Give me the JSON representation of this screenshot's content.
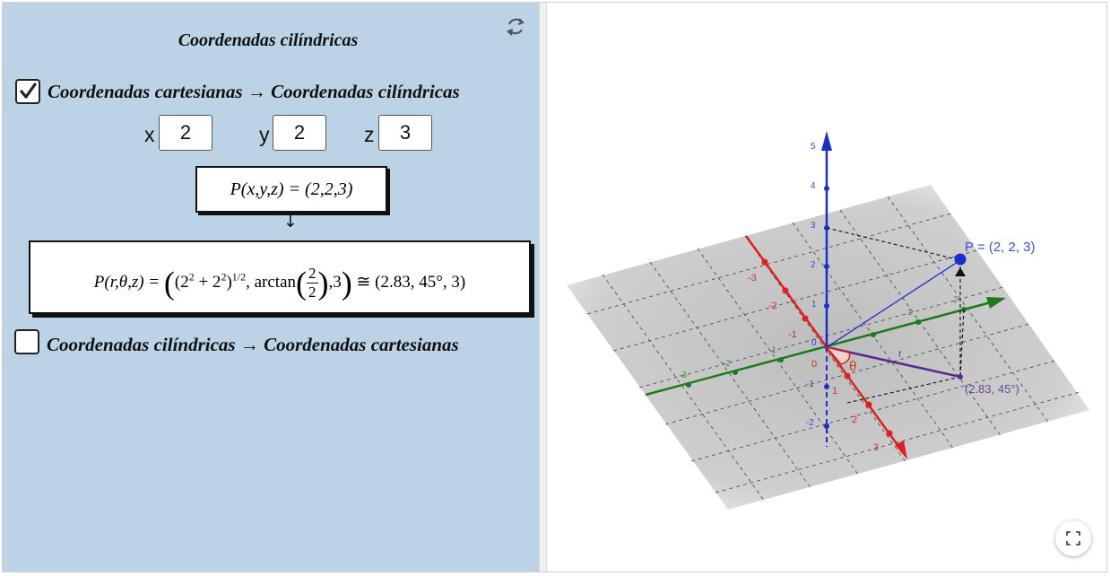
{
  "app": {
    "title": "Coordenadas cilíndricas"
  },
  "controls": {
    "checkbox1": {
      "label": "Coordenadas cartesianas → Coordenadas cilíndricas",
      "checked": true
    },
    "checkbox2": {
      "label": "Coordenadas cilíndricas → Coordenadas cartesianas",
      "checked": false
    },
    "inputs": [
      {
        "label": "x",
        "value": "2"
      },
      {
        "label": "y",
        "value": "2"
      },
      {
        "label": "z",
        "value": "3"
      }
    ]
  },
  "formulas": {
    "cartesian": "P(x,y,z) = (2,2,3)",
    "arrow": "↓",
    "cyl_lhs": "P(r,θ,z) =",
    "cyl_base": "(2",
    "cyl_exp1": "2",
    "cyl_plus": " + 2",
    "cyl_exp2": "2",
    "cyl_close": ")",
    "cyl_half": "1/2",
    "cyl_arctan": ", arctan",
    "cyl_num": "2",
    "cyl_den": "2",
    "cyl_z": ",3",
    "cyl_result": "≅ (2.83, 45°, 3)"
  },
  "graph3d": {
    "point_label": "P = (2, 2, 3)",
    "projection_label": "(2.83, 45°)",
    "r_label": "r",
    "theta_label": "θ",
    "origin_label": "0",
    "z_ticks": [
      "5",
      "4",
      "3",
      "2",
      "1",
      "0",
      "-1",
      "-2"
    ],
    "x_ticks": [
      "-3",
      "-2",
      "-1",
      "0",
      "1",
      "2",
      "3"
    ],
    "y_ticks": [
      "-3",
      "-2",
      "-1",
      "1",
      "2",
      "3"
    ],
    "colors": {
      "x_axis": "#e02020",
      "y_axis": "#1e7a1e",
      "z_axis": "#1a2fcf",
      "point": "#1a2fcf",
      "r_segment": "#5b2a8e",
      "grid_plane": "#bdbdbd"
    }
  },
  "icons": {
    "reset": "refresh-icon",
    "fullscreen": "fullscreen-icon",
    "check": "checkmark-icon"
  }
}
